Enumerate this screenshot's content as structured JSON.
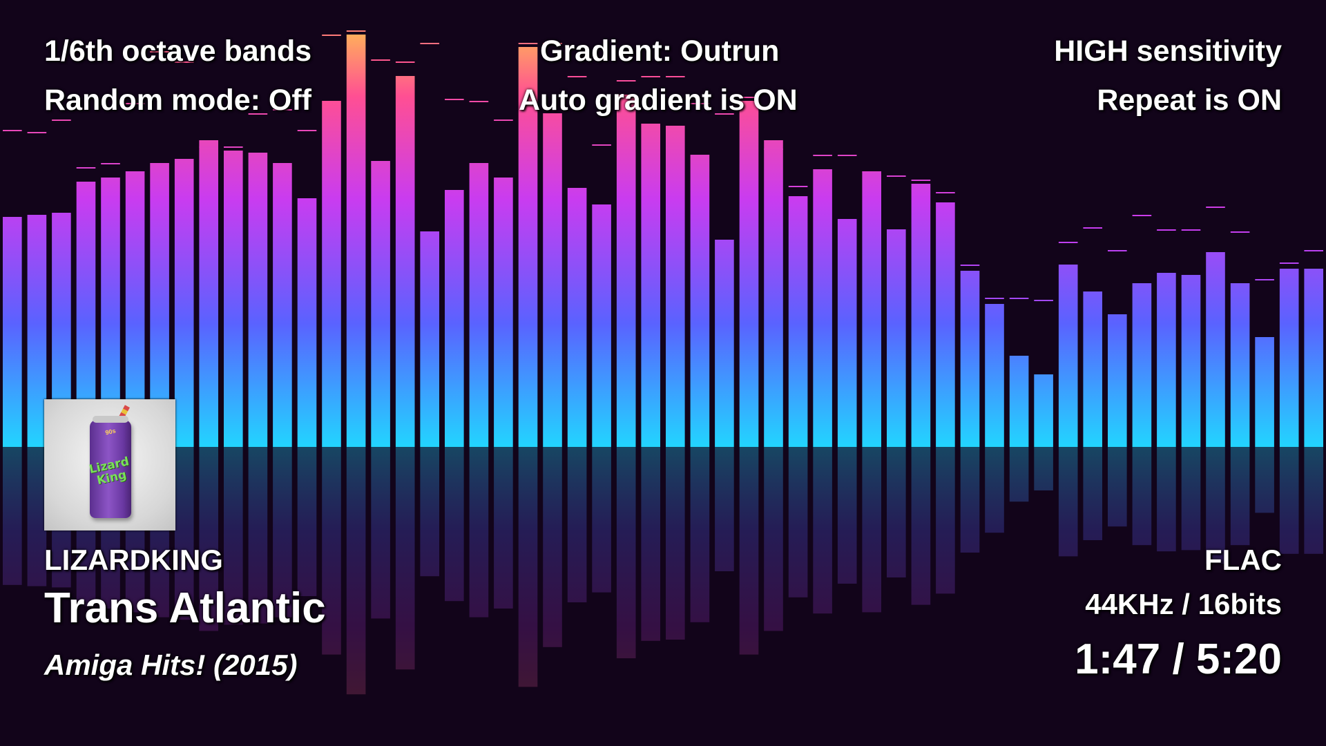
{
  "overlay": {
    "bands": "1/6th octave bands",
    "random_mode": "Random mode: Off",
    "gradient": "Gradient: Outrun",
    "auto_gradient": "Auto gradient is ON",
    "sensitivity": "HIGH sensitivity",
    "repeat": "Repeat is ON"
  },
  "track": {
    "artist": "LIZARDKING",
    "title": "Trans Atlantic",
    "album": "Amiga Hits! (2015)",
    "format": "FLAC",
    "quality": "44KHz / 16bits",
    "time": "1:47 / 5:20"
  },
  "cover": {
    "brand": "Lizard King",
    "tag": "90s"
  },
  "spectrum": {
    "gradient": "Outrun",
    "colors": [
      "#22d5ff",
      "#5a62ff",
      "#c93cf0",
      "#ff4f93",
      "#ffad5c"
    ],
    "reflection": true,
    "levels": [
      0.555,
      0.56,
      0.565,
      0.64,
      0.65,
      0.665,
      0.685,
      0.695,
      0.74,
      0.715,
      0.71,
      0.685,
      0.6,
      0.835,
      0.995,
      0.69,
      0.895,
      0.52,
      0.62,
      0.685,
      0.65,
      0.965,
      0.805,
      0.625,
      0.585,
      0.85,
      0.78,
      0.775,
      0.705,
      0.5,
      0.835,
      0.74,
      0.605,
      0.67,
      0.55,
      0.665,
      0.525,
      0.635,
      0.59,
      0.425,
      0.345,
      0.22,
      0.175,
      0.44,
      0.375,
      0.32,
      0.395,
      0.42,
      0.415,
      0.47,
      0.395,
      0.265,
      0.43,
      0.43
    ],
    "peaks": [
      0.765,
      0.76,
      0.79,
      0.675,
      0.685,
      0.83,
      0.955,
      0.93,
      0.725,
      0.725,
      0.805,
      0.815,
      0.765,
      0.995,
      1.005,
      0.935,
      0.93,
      0.975,
      0.84,
      0.835,
      0.79,
      0.975,
      0.975,
      0.895,
      0.73,
      0.885,
      0.895,
      0.895,
      0.83,
      0.805,
      0.845,
      0.72,
      0.63,
      0.705,
      0.705,
      0.665,
      0.655,
      0.645,
      0.615,
      0.44,
      0.36,
      0.36,
      0.355,
      0.495,
      0.53,
      0.475,
      0.56,
      0.525,
      0.525,
      0.58,
      0.52,
      0.405,
      0.445,
      0.475
    ]
  }
}
